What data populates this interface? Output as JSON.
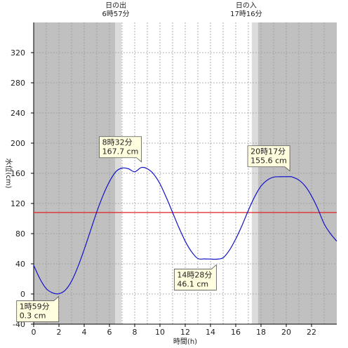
{
  "chart_data": {
    "type": "line",
    "xlabel": "時間(h)",
    "ylabel": "水位(cm)",
    "xlim": [
      0,
      24
    ],
    "ylim": [
      -40,
      360
    ],
    "x_ticks": [
      0,
      2,
      4,
      6,
      8,
      10,
      12,
      14,
      16,
      18,
      20,
      22
    ],
    "y_ticks": [
      -40,
      0,
      40,
      80,
      120,
      160,
      200,
      240,
      280,
      320
    ],
    "grid": true,
    "reference_line": {
      "value": 108,
      "color": "#dd2222"
    },
    "series": [
      {
        "color": "#1111cc",
        "x": [
          0,
          0.5,
          1,
          1.5,
          1.983,
          2.5,
          3,
          3.5,
          4,
          4.5,
          5,
          5.5,
          6,
          6.5,
          7,
          7.5,
          8,
          8.533,
          9,
          9.5,
          10,
          10.5,
          11,
          11.5,
          12,
          12.5,
          13,
          13.5,
          14,
          14.467,
          15,
          15.5,
          16,
          16.5,
          17,
          17.5,
          18,
          18.5,
          19,
          19.5,
          20.283,
          20.5,
          21,
          21.5,
          22,
          22.5,
          23,
          23.5,
          24
        ],
        "values": [
          38,
          20,
          7,
          1.5,
          0.3,
          5,
          17,
          36,
          59,
          84,
          109,
          131,
          149,
          162,
          167,
          166,
          162,
          167.7,
          166,
          159,
          146,
          128,
          108,
          88,
          70,
          56,
          47,
          46.5,
          46.3,
          46.1,
          48,
          58,
          73,
          91,
          111,
          129,
          143,
          151,
          155,
          155.4,
          155.6,
          155,
          151,
          143,
          130,
          113,
          93,
          80,
          70
        ]
      }
    ],
    "sunrise": {
      "title": "日の出",
      "time_label": "6時57分",
      "hour": 6.95
    },
    "sunset": {
      "title": "日の入",
      "time_label": "17時16分",
      "hour": 17.27
    },
    "annotations": [
      {
        "time": "1時59分",
        "value": "0.3 cm",
        "x": 1.983,
        "y": 0.3
      },
      {
        "time": "8時32分",
        "value": "167.7 cm",
        "x": 8.533,
        "y": 167.7
      },
      {
        "time": "14時28分",
        "value": "46.1 cm",
        "x": 14.467,
        "y": 46.1
      },
      {
        "time": "20時17分",
        "value": "155.6 cm",
        "x": 20.283,
        "y": 155.6
      }
    ],
    "colors": {
      "night": "#c0c0c0",
      "twilight": "#dcdcdc",
      "day": "#ffffff",
      "annotation_bg": "#ffffe0"
    }
  }
}
